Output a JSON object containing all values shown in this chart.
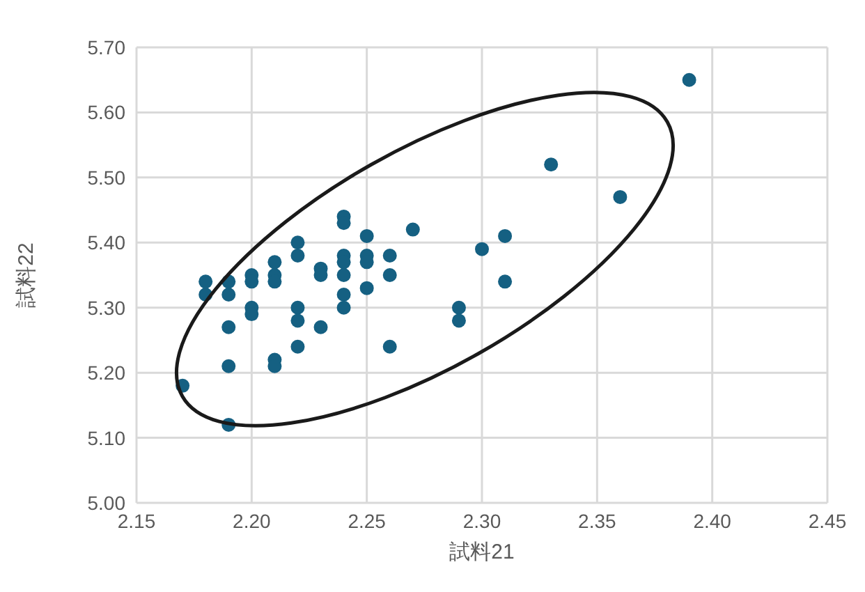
{
  "chart_data": {
    "type": "scatter",
    "xlabel": "試料21",
    "ylabel": "試料22",
    "xlim": [
      2.15,
      2.45
    ],
    "xticks": [
      {
        "value": 2.15,
        "label": "2.15"
      },
      {
        "value": 2.2,
        "label": "2.20"
      },
      {
        "value": 2.25,
        "label": "2.25"
      },
      {
        "value": 2.3,
        "label": "2.30"
      },
      {
        "value": 2.35,
        "label": "2.35"
      },
      {
        "value": 2.4,
        "label": "2.40"
      },
      {
        "value": 2.45,
        "label": "2.45"
      }
    ],
    "ylim": [
      5.0,
      5.7
    ],
    "yticks": [
      {
        "value": 5.0,
        "label": "5.00"
      },
      {
        "value": 5.1,
        "label": "5.10"
      },
      {
        "value": 5.2,
        "label": "5.20"
      },
      {
        "value": 5.3,
        "label": "5.30"
      },
      {
        "value": 5.4,
        "label": "5.40"
      },
      {
        "value": 5.5,
        "label": "5.50"
      },
      {
        "value": 5.6,
        "label": "5.60"
      },
      {
        "value": 5.7,
        "label": "5.70"
      }
    ],
    "grid": true,
    "marker": "circle",
    "legend": false,
    "series": [
      {
        "color": "#156082",
        "x": [
          2.17,
          2.18,
          2.18,
          2.19,
          2.19,
          2.19,
          2.19,
          2.19,
          2.2,
          2.2,
          2.2,
          2.2,
          2.21,
          2.21,
          2.21,
          2.21,
          2.21,
          2.22,
          2.22,
          2.22,
          2.22,
          2.22,
          2.23,
          2.23,
          2.23,
          2.24,
          2.24,
          2.24,
          2.24,
          2.24,
          2.24,
          2.24,
          2.25,
          2.25,
          2.25,
          2.25,
          2.26,
          2.26,
          2.26,
          2.27,
          2.29,
          2.29,
          2.3,
          2.31,
          2.31,
          2.33,
          2.36,
          2.39
        ],
        "values": [
          5.18,
          5.34,
          5.32,
          5.34,
          5.32,
          5.27,
          5.21,
          5.12,
          5.35,
          5.34,
          5.3,
          5.29,
          5.37,
          5.35,
          5.34,
          5.22,
          5.21,
          5.4,
          5.38,
          5.3,
          5.28,
          5.24,
          5.36,
          5.35,
          5.27,
          5.44,
          5.43,
          5.38,
          5.37,
          5.35,
          5.32,
          5.3,
          5.41,
          5.38,
          5.37,
          5.33,
          5.38,
          5.35,
          5.24,
          5.42,
          5.3,
          5.28,
          5.39,
          5.41,
          5.34,
          5.52,
          5.47,
          5.65
        ]
      }
    ]
  }
}
